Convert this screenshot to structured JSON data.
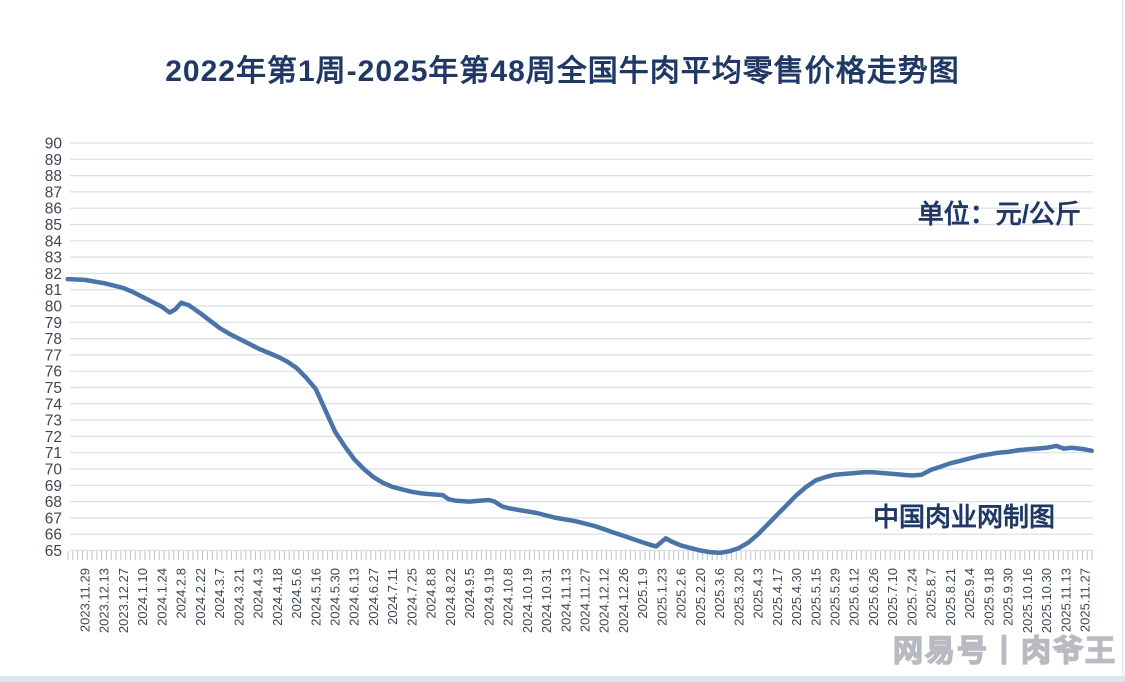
{
  "title": "2022年第1周-2025年第48周全国牛肉平均零售价格走势图",
  "unit_label": "单位：元/公斤",
  "source_watermark": "中国肉业网制图",
  "platform_watermark": "网易号丨肉爷王",
  "colors": {
    "line": "#4a74a8",
    "title_text": "#1f3864",
    "axis_text": "#3d4653",
    "gridline": "#d9dfe6",
    "tick": "#bcc5cf",
    "watermark_outline": "#b7bbc1",
    "bottom_strip": "#dae6f3"
  },
  "chart_data": {
    "type": "line",
    "title": "2022年第1周-2025年第48周全国牛肉平均零售价格走势图",
    "unit": "元/公斤",
    "xlabel": "",
    "ylabel": "",
    "ylim": [
      65,
      90
    ],
    "ytick_step": 1,
    "yticks": [
      65,
      66,
      67,
      68,
      69,
      70,
      71,
      72,
      73,
      74,
      75,
      76,
      77,
      78,
      79,
      80,
      81,
      82,
      83,
      84,
      85,
      86,
      87,
      88,
      89,
      90
    ],
    "grid": "horizontal",
    "legend": "none",
    "categories": [
      "2023.11.29",
      "2023.12.13",
      "2023.12.27",
      "2024.1.10",
      "2024.1.24",
      "2024.2.8",
      "2024.2.22",
      "2024.3.7",
      "2024.3.21",
      "2024.4.3",
      "2024.4.18",
      "2024.5.6",
      "2024.5.16",
      "2024.5.30",
      "2024.6.13",
      "2024.6.27",
      "2024.7.11",
      "2024.7.25",
      "2024.8.8",
      "2024.8.22",
      "2024.9.5",
      "2024.9.19",
      "2024.10.8",
      "2024.10.19",
      "2024.10.31",
      "2024.11.13",
      "2024.11.27",
      "2024.12.12",
      "2024.12.26",
      "2025.1.9",
      "2025.1.23",
      "2025.2.6",
      "2025.2.20",
      "2025.3.6",
      "2025.3.20",
      "2025.4.3",
      "2025.4.17",
      "2025.4.30",
      "2025.5.15",
      "2025.5.29",
      "2025.6.12",
      "2025.6.26",
      "2025.7.10",
      "2025.7.24",
      "2025.8.7",
      "2025.8.21",
      "2025.9.4",
      "2025.9.18",
      "2025.9.30",
      "2025.10.16",
      "2025.10.30",
      "2025.11.13",
      "2025.11.27"
    ],
    "values": [
      81.6,
      81.4,
      81.1,
      80.55,
      79.95,
      80.2,
      79.55,
      78.65,
      78.0,
      77.4,
      76.9,
      76.2,
      74.9,
      72.3,
      70.6,
      69.5,
      68.9,
      68.6,
      68.45,
      68.05,
      68.0,
      68.1,
      67.6,
      67.4,
      67.15,
      66.9,
      66.65,
      66.3,
      65.9,
      65.5,
      65.6,
      65.3,
      65.0,
      64.85,
      65.15,
      66.0,
      67.2,
      68.4,
      69.3,
      69.65,
      69.75,
      69.8,
      69.7,
      69.6,
      69.95,
      70.35,
      70.65,
      70.9,
      71.05,
      71.2,
      71.3,
      71.3,
      71.2
    ],
    "points": [
      [
        -0.9,
        81.65
      ],
      [
        0,
        81.6
      ],
      [
        0.5,
        81.5
      ],
      [
        1,
        81.4
      ],
      [
        1.5,
        81.25
      ],
      [
        2,
        81.1
      ],
      [
        2.5,
        80.85
      ],
      [
        3,
        80.55
      ],
      [
        3.5,
        80.25
      ],
      [
        4,
        79.95
      ],
      [
        4.4,
        79.6
      ],
      [
        4.7,
        79.8
      ],
      [
        5,
        80.2
      ],
      [
        5.4,
        80.05
      ],
      [
        6,
        79.55
      ],
      [
        6.5,
        79.1
      ],
      [
        7,
        78.65
      ],
      [
        7.5,
        78.3
      ],
      [
        8,
        78.0
      ],
      [
        8.5,
        77.7
      ],
      [
        9,
        77.4
      ],
      [
        9.5,
        77.15
      ],
      [
        10,
        76.9
      ],
      [
        10.5,
        76.6
      ],
      [
        11,
        76.2
      ],
      [
        11.5,
        75.6
      ],
      [
        12,
        74.9
      ],
      [
        12.5,
        73.6
      ],
      [
        13,
        72.3
      ],
      [
        13.5,
        71.4
      ],
      [
        14,
        70.6
      ],
      [
        14.5,
        70.0
      ],
      [
        15,
        69.5
      ],
      [
        15.5,
        69.15
      ],
      [
        16,
        68.9
      ],
      [
        16.5,
        68.75
      ],
      [
        17,
        68.6
      ],
      [
        17.5,
        68.5
      ],
      [
        18,
        68.45
      ],
      [
        18.6,
        68.4
      ],
      [
        18.9,
        68.15
      ],
      [
        19.3,
        68.05
      ],
      [
        20,
        68.0
      ],
      [
        20.5,
        68.05
      ],
      [
        21,
        68.1
      ],
      [
        21.3,
        68.0
      ],
      [
        21.7,
        67.7
      ],
      [
        22,
        67.6
      ],
      [
        22.5,
        67.5
      ],
      [
        23,
        67.4
      ],
      [
        23.5,
        67.3
      ],
      [
        24,
        67.15
      ],
      [
        24.5,
        67.0
      ],
      [
        25,
        66.9
      ],
      [
        25.5,
        66.8
      ],
      [
        26,
        66.65
      ],
      [
        26.5,
        66.5
      ],
      [
        27,
        66.3
      ],
      [
        27.5,
        66.1
      ],
      [
        28,
        65.9
      ],
      [
        28.5,
        65.7
      ],
      [
        29,
        65.5
      ],
      [
        29.4,
        65.35
      ],
      [
        29.7,
        65.25
      ],
      [
        30.2,
        65.75
      ],
      [
        30.5,
        65.55
      ],
      [
        31,
        65.3
      ],
      [
        31.5,
        65.15
      ],
      [
        32,
        65.0
      ],
      [
        32.5,
        64.9
      ],
      [
        33,
        64.85
      ],
      [
        33.5,
        64.95
      ],
      [
        34,
        65.15
      ],
      [
        34.5,
        65.5
      ],
      [
        35,
        66.0
      ],
      [
        35.5,
        66.6
      ],
      [
        36,
        67.2
      ],
      [
        36.5,
        67.8
      ],
      [
        37,
        68.4
      ],
      [
        37.5,
        68.9
      ],
      [
        38,
        69.3
      ],
      [
        38.5,
        69.5
      ],
      [
        39,
        69.65
      ],
      [
        39.5,
        69.7
      ],
      [
        40,
        69.75
      ],
      [
        40.5,
        69.8
      ],
      [
        41,
        69.8
      ],
      [
        41.5,
        69.75
      ],
      [
        42,
        69.7
      ],
      [
        42.5,
        69.65
      ],
      [
        43,
        69.6
      ],
      [
        43.5,
        69.65
      ],
      [
        44,
        69.95
      ],
      [
        44.5,
        70.15
      ],
      [
        45,
        70.35
      ],
      [
        45.5,
        70.5
      ],
      [
        46,
        70.65
      ],
      [
        46.5,
        70.8
      ],
      [
        47,
        70.9
      ],
      [
        47.5,
        71.0
      ],
      [
        48,
        71.05
      ],
      [
        48.5,
        71.15
      ],
      [
        49,
        71.2
      ],
      [
        49.5,
        71.25
      ],
      [
        50,
        71.3
      ],
      [
        50.5,
        71.42
      ],
      [
        50.9,
        71.25
      ],
      [
        51.3,
        71.3
      ],
      [
        51.7,
        71.25
      ],
      [
        52,
        71.2
      ],
      [
        52.35,
        71.12
      ]
    ]
  }
}
